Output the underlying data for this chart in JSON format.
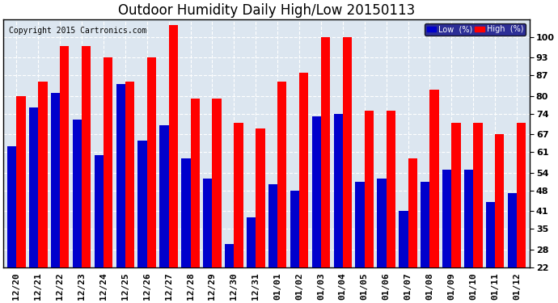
{
  "title": "Outdoor Humidity Daily High/Low 20150113",
  "copyright": "Copyright 2015 Cartronics.com",
  "legend_low": "Low  (%)",
  "legend_high": "High  (%)",
  "dates": [
    "12/20",
    "12/21",
    "12/22",
    "12/23",
    "12/24",
    "12/25",
    "12/26",
    "12/27",
    "12/28",
    "12/29",
    "12/30",
    "12/31",
    "01/01",
    "01/02",
    "01/03",
    "01/04",
    "01/05",
    "01/06",
    "01/07",
    "01/08",
    "01/09",
    "01/10",
    "01/11",
    "01/12"
  ],
  "high": [
    80,
    85,
    97,
    97,
    93,
    85,
    93,
    104,
    79,
    79,
    71,
    69,
    85,
    88,
    100,
    100,
    75,
    75,
    59,
    82,
    71,
    71,
    67,
    71
  ],
  "low": [
    63,
    76,
    81,
    72,
    60,
    84,
    65,
    70,
    59,
    52,
    30,
    39,
    50,
    48,
    73,
    74,
    51,
    52,
    41,
    51,
    55,
    55,
    44,
    47
  ],
  "bar_width": 0.42,
  "ymin": 22,
  "ymax": 104,
  "yticks": [
    22,
    28,
    35,
    41,
    48,
    54,
    61,
    67,
    74,
    80,
    87,
    93,
    100
  ],
  "bg_color": "#ffffff",
  "plot_bg_color": "#dce6f0",
  "high_color": "#ff0000",
  "low_color": "#0000cc",
  "grid_color": "#ffffff",
  "title_fontsize": 12,
  "tick_fontsize": 8,
  "copyright_fontsize": 7
}
